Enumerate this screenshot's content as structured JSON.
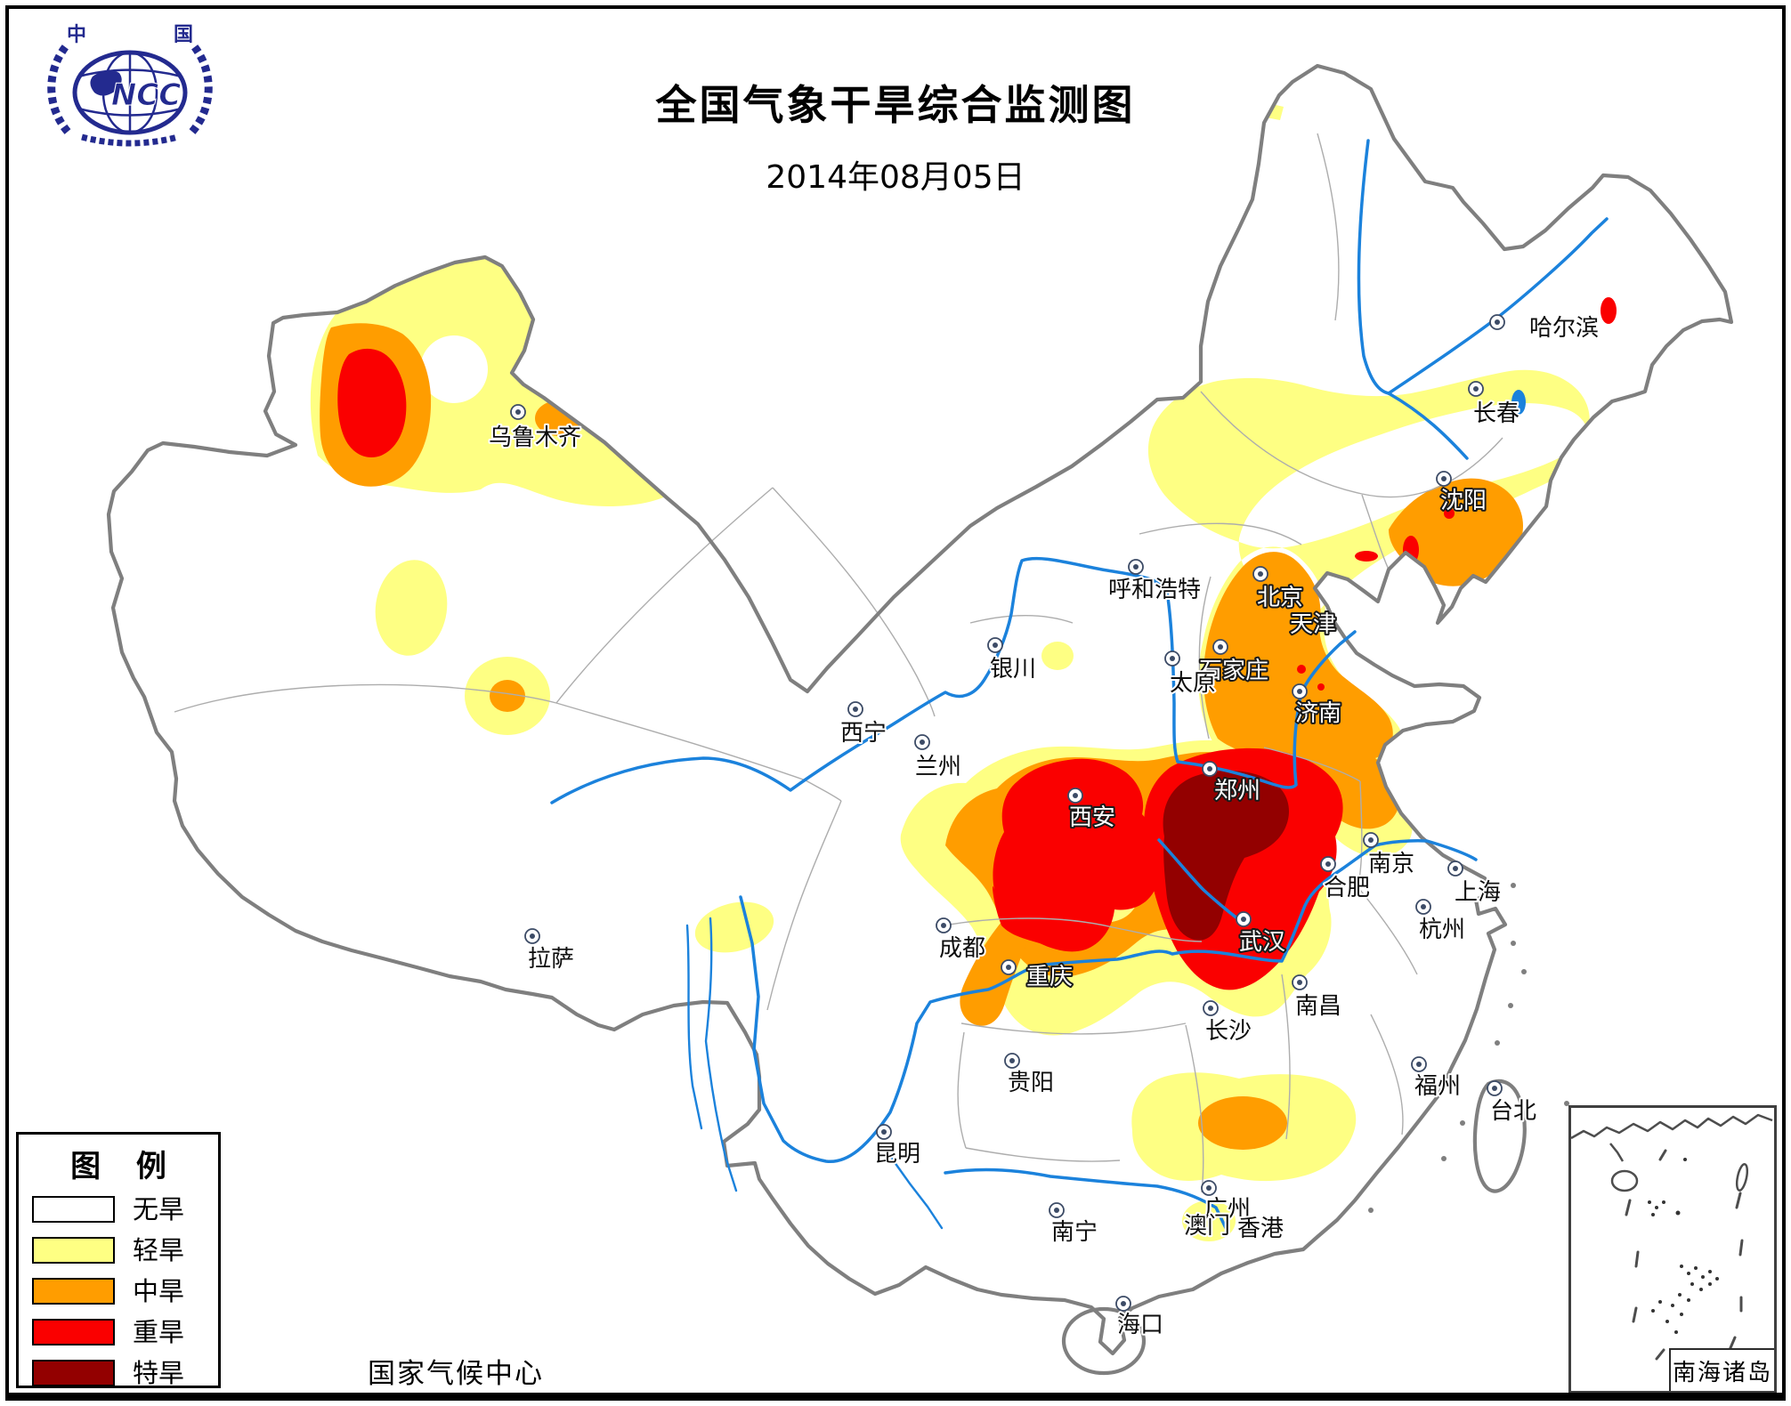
{
  "header": {
    "title": "全国气象干旱综合监测图",
    "date": "2014年08月05日"
  },
  "logo": {
    "top_left_char": "中",
    "top_right_char": "国",
    "abbr": "NCC",
    "color": "#232a8f"
  },
  "legend": {
    "title": "图 例",
    "items": [
      {
        "label": "无旱",
        "color": "#FFFFFF"
      },
      {
        "label": "轻旱",
        "color": "#FEFF83"
      },
      {
        "label": "中旱",
        "color": "#FF9D00"
      },
      {
        "label": "重旱",
        "color": "#FA0000"
      },
      {
        "label": "特旱",
        "color": "#930000"
      }
    ]
  },
  "attribution": "国家气候中心",
  "inset": {
    "label": "南海诸岛"
  },
  "map": {
    "colors": {
      "no_drought": "#FFFFFF",
      "light": "#FEFF83",
      "moderate": "#FF9D00",
      "severe": "#FA0000",
      "extreme": "#930000",
      "river": "#1B82DC",
      "border": "#7F7F7F",
      "province": "#ADADAD",
      "marker": "#3C4B66"
    },
    "cities": [
      {
        "name": "乌鲁木齐",
        "marker": [
          582,
          463
        ],
        "label": [
          601,
          492
        ],
        "tone": "dark"
      },
      {
        "name": "哈尔滨",
        "marker": [
          1682,
          362
        ],
        "label": [
          1757,
          369
        ],
        "tone": "dark"
      },
      {
        "name": "长春",
        "marker": [
          1658,
          437
        ],
        "label": [
          1681,
          465
        ],
        "tone": "dark"
      },
      {
        "name": "沈阳",
        "marker": [
          1622,
          538
        ],
        "label": [
          1644,
          563
        ],
        "tone": "light"
      },
      {
        "name": "北京",
        "marker": [
          1416,
          645
        ],
        "label": [
          1438,
          672
        ],
        "tone": "light"
      },
      {
        "name": "天津",
        "marker": null,
        "label": [
          1475,
          702
        ],
        "tone": "light"
      },
      {
        "name": "呼和浩特",
        "marker": [
          1276,
          637
        ],
        "label": [
          1297,
          663
        ],
        "tone": "dark"
      },
      {
        "name": "石家庄",
        "marker": [
          1371,
          727
        ],
        "label": [
          1386,
          754
        ],
        "tone": "light"
      },
      {
        "name": "太原",
        "marker": [
          1317,
          740
        ],
        "label": [
          1340,
          768
        ],
        "tone": "dark"
      },
      {
        "name": "银川",
        "marker": [
          1118,
          725
        ],
        "label": [
          1138,
          752
        ],
        "tone": "dark"
      },
      {
        "name": "济南",
        "marker": [
          1460,
          777
        ],
        "label": [
          1481,
          802
        ],
        "tone": "light"
      },
      {
        "name": "西宁",
        "marker": [
          961,
          797
        ],
        "label": [
          970,
          824
        ],
        "tone": "dark"
      },
      {
        "name": "兰州",
        "marker": [
          1036,
          834
        ],
        "label": [
          1054,
          862
        ],
        "tone": "dark"
      },
      {
        "name": "郑州",
        "marker": [
          1359,
          864
        ],
        "label": [
          1390,
          889
        ],
        "tone": "light"
      },
      {
        "name": "西安",
        "marker": [
          1208,
          894
        ],
        "label": [
          1227,
          919
        ],
        "tone": "light"
      },
      {
        "name": "南京",
        "marker": [
          1540,
          944
        ],
        "label": [
          1563,
          971
        ],
        "tone": "dark"
      },
      {
        "name": "合肥",
        "marker": [
          1492,
          971
        ],
        "label": [
          1513,
          998
        ],
        "tone": "dark"
      },
      {
        "name": "上海",
        "marker": [
          1635,
          976
        ],
        "label": [
          1660,
          1003
        ],
        "tone": "dark"
      },
      {
        "name": "杭州",
        "marker": [
          1599,
          1019
        ],
        "label": [
          1620,
          1045
        ],
        "tone": "dark"
      },
      {
        "name": "拉萨",
        "marker": [
          598,
          1052
        ],
        "label": [
          619,
          1078
        ],
        "tone": "dark"
      },
      {
        "name": "成都",
        "marker": [
          1060,
          1040
        ],
        "label": [
          1081,
          1066
        ],
        "tone": "dark"
      },
      {
        "name": "武汉",
        "marker": [
          1397,
          1033
        ],
        "label": [
          1418,
          1059
        ],
        "tone": "light"
      },
      {
        "name": "重庆",
        "marker": [
          1133,
          1087
        ],
        "label": [
          1179,
          1098
        ],
        "tone": "light"
      },
      {
        "name": "南昌",
        "marker": [
          1460,
          1104
        ],
        "label": [
          1481,
          1131
        ],
        "tone": "dark"
      },
      {
        "name": "长沙",
        "marker": [
          1360,
          1133
        ],
        "label": [
          1380,
          1159
        ],
        "tone": "dark"
      },
      {
        "name": "贵阳",
        "marker": [
          1137,
          1192
        ],
        "label": [
          1158,
          1217
        ],
        "tone": "dark"
      },
      {
        "name": "福州",
        "marker": [
          1594,
          1196
        ],
        "label": [
          1615,
          1221
        ],
        "tone": "dark"
      },
      {
        "name": "台北",
        "marker": [
          1679,
          1223
        ],
        "label": [
          1700,
          1249
        ],
        "tone": "dark"
      },
      {
        "name": "昆明",
        "marker": [
          993,
          1272
        ],
        "label": [
          1008,
          1297
        ],
        "tone": "dark"
      },
      {
        "name": "南宁",
        "marker": [
          1187,
          1360
        ],
        "label": [
          1207,
          1385
        ],
        "tone": "dark"
      },
      {
        "name": "广州",
        "marker": [
          1358,
          1335
        ],
        "label": [
          1379,
          1359
        ],
        "tone": "dark"
      },
      {
        "name": "澳门",
        "marker": null,
        "label": [
          1356,
          1378
        ],
        "tone": "dark"
      },
      {
        "name": "香港",
        "marker": null,
        "label": [
          1416,
          1381
        ],
        "tone": "dark"
      },
      {
        "name": "海口",
        "marker": [
          1262,
          1465
        ],
        "label": [
          1281,
          1489
        ],
        "tone": "dark"
      }
    ]
  }
}
